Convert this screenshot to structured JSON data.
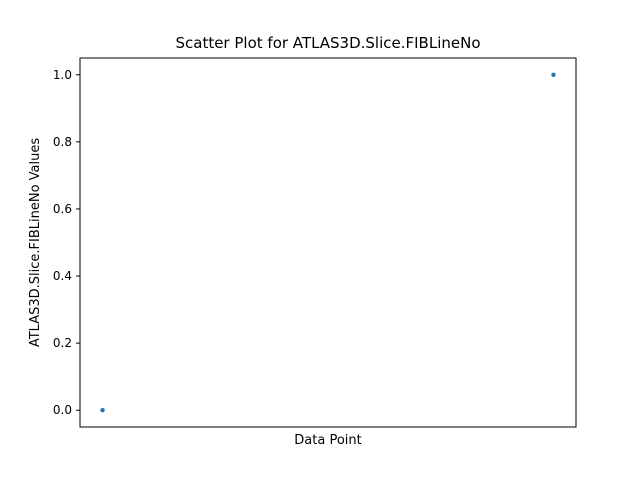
{
  "chart_data": {
    "type": "scatter",
    "title": "Scatter Plot for ATLAS3D.Slice.FIBLineNo",
    "xlabel": "Data Point",
    "ylabel": "ATLAS3D.Slice.FIBLineNo Values",
    "series": [
      {
        "x": [
          0,
          1
        ],
        "y": [
          0.0,
          1.0
        ],
        "color": "#1f77b4"
      }
    ],
    "xlim": [
      -0.05,
      1.05
    ],
    "ylim": [
      -0.05,
      1.05
    ],
    "yticks": [
      0.0,
      0.2,
      0.4,
      0.6,
      0.8,
      1.0
    ],
    "ytick_labels": [
      "0.0",
      "0.2",
      "0.4",
      "0.6",
      "0.8",
      "1.0"
    ],
    "xticks_visible": false,
    "grid": false
  }
}
